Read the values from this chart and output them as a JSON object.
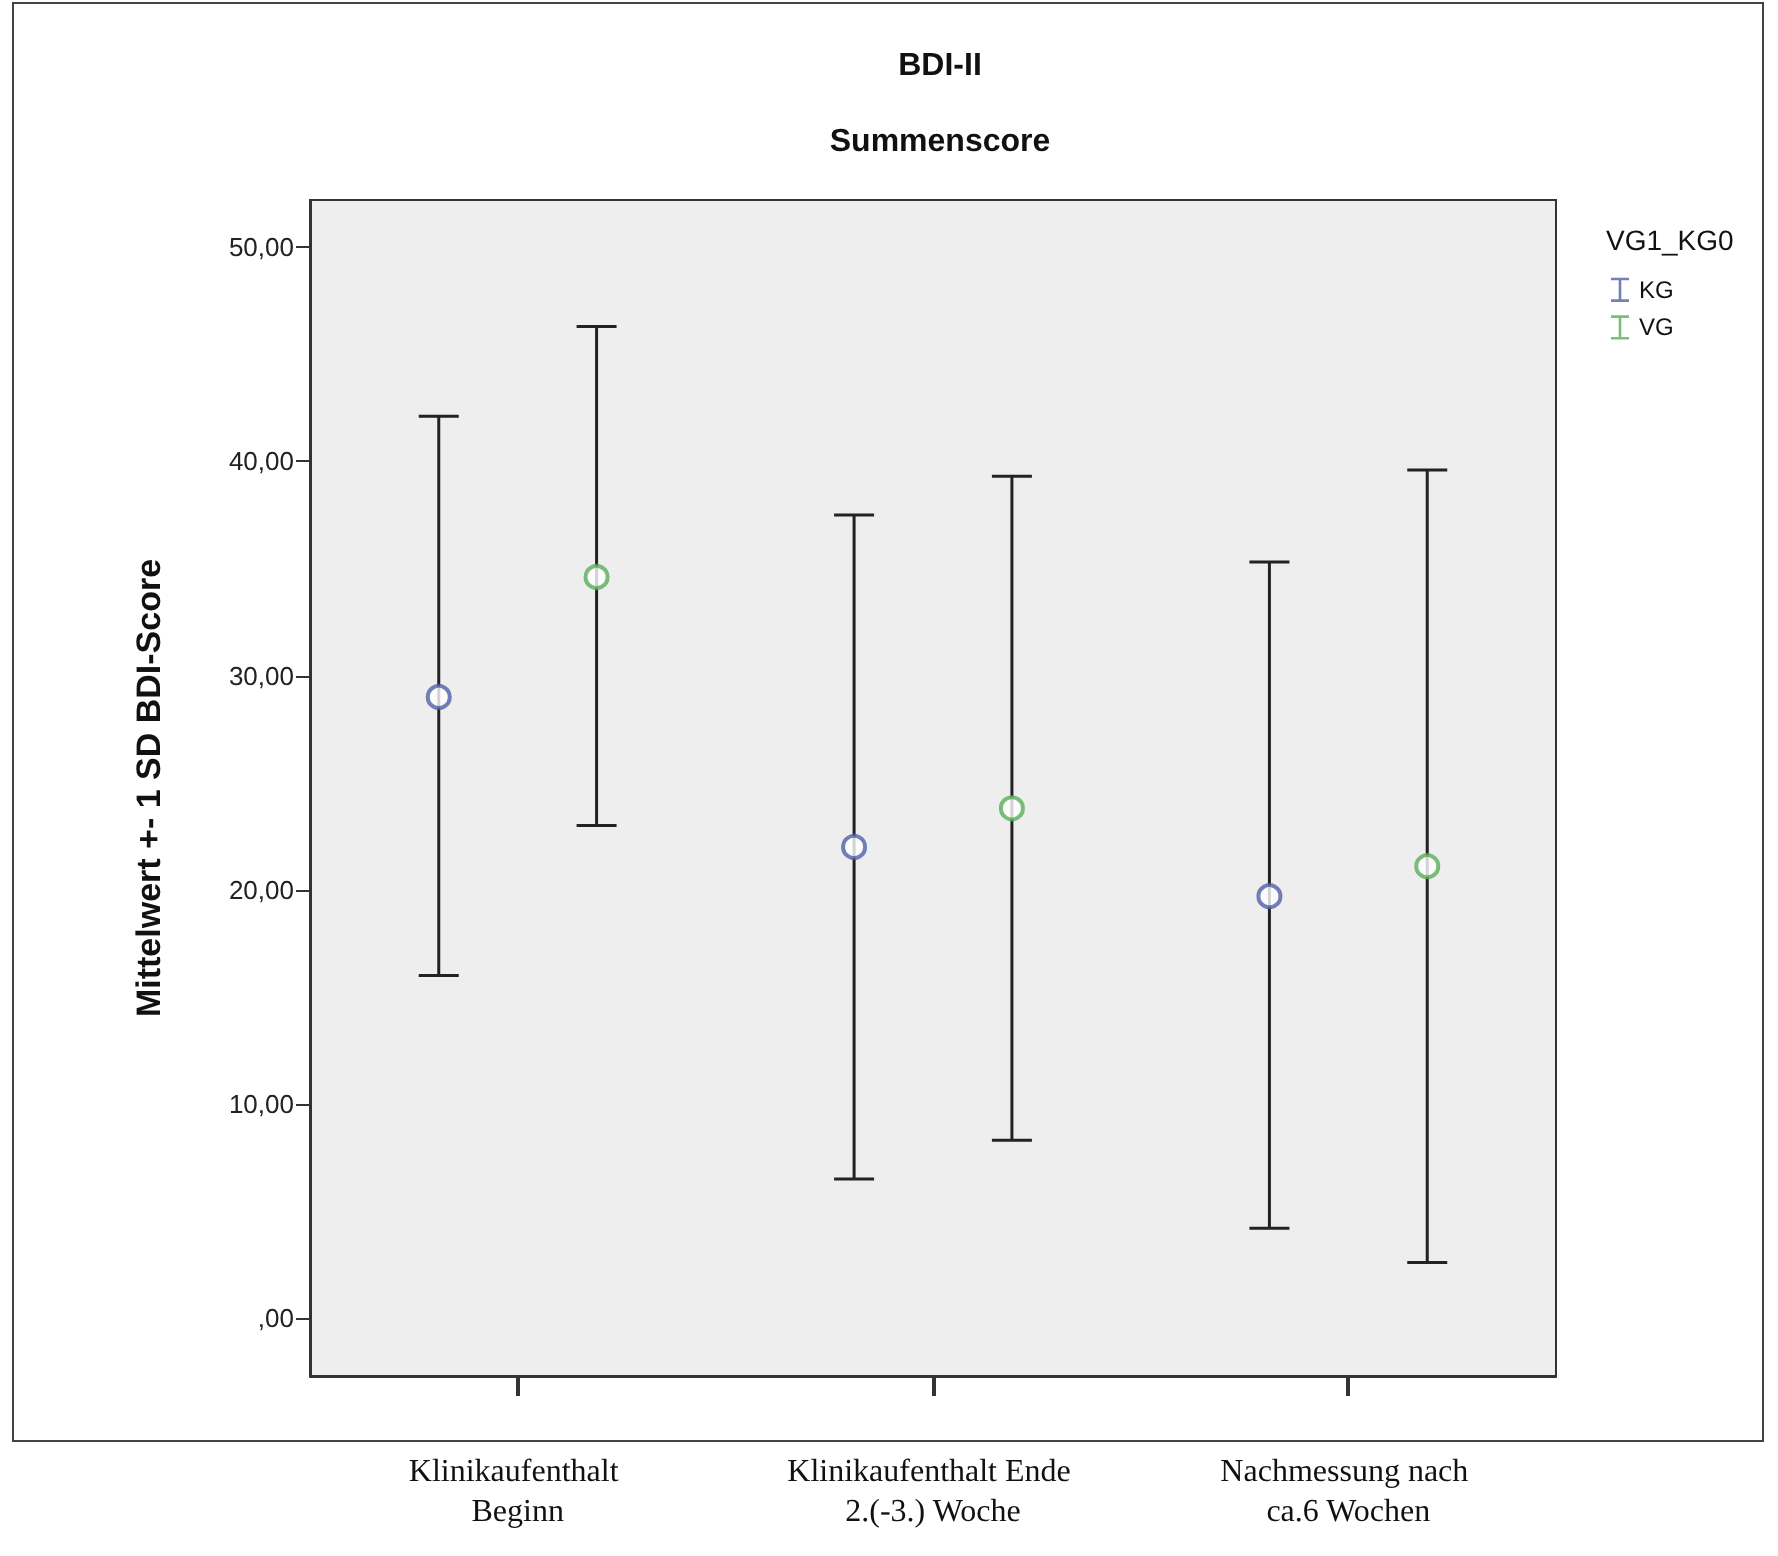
{
  "chart_data": {
    "type": "scatter",
    "title": "BDI-II",
    "subtitle": "Summenscore",
    "ylabel": "Mittelwert +- 1 SD BDI-Score",
    "legend_title": "VG1_KG0",
    "categories": [
      "Klinikaufenthalt Beginn",
      "Klinikaufenthalt Ende 2.(-3.) Woche",
      "Nachmessung nach ca.6 Wochen"
    ],
    "series": [
      {
        "name": "KG",
        "color": "#4f5fa8",
        "values": [
          29.0,
          22.0,
          19.7
        ],
        "errors": [
          [
            16.0,
            42.1
          ],
          [
            6.5,
            37.5
          ],
          [
            4.2,
            35.3
          ]
        ]
      },
      {
        "name": "VG",
        "color": "#5aae5a",
        "values": [
          34.6,
          23.8,
          21.1
        ],
        "errors": [
          [
            23.0,
            46.3
          ],
          [
            8.3,
            39.3
          ],
          [
            2.6,
            39.6
          ]
        ]
      }
    ],
    "ylim": [
      -2.7,
      52.2
    ],
    "yticks": [
      {
        "value": 0,
        "label": ",00"
      },
      {
        "value": 10,
        "label": "10,00"
      },
      {
        "value": 20,
        "label": "20,00"
      },
      {
        "value": 30,
        "label": "30,00"
      },
      {
        "value": 40,
        "label": "40,00"
      },
      {
        "value": 50,
        "label": "50,00"
      }
    ],
    "grid": false,
    "legend": "top right",
    "marker": "circle"
  }
}
